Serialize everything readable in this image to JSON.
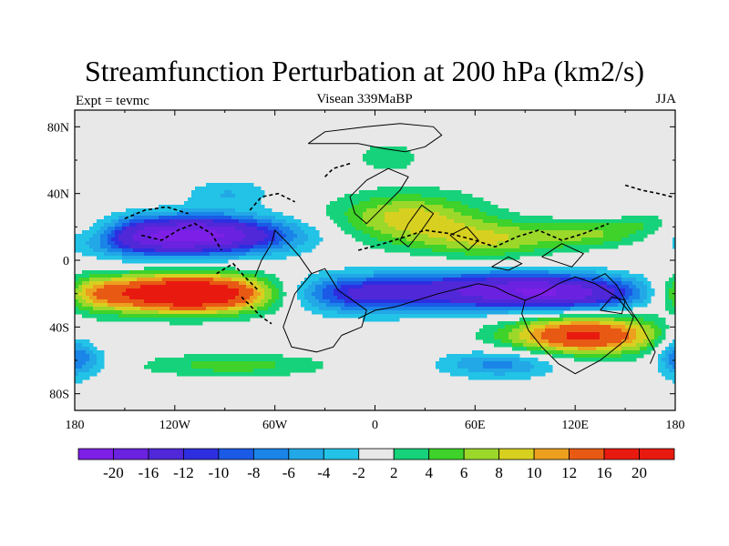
{
  "header": {
    "title": "Streamfunction Perturbation at 200 hPa (km2/s)",
    "left": "Expt = tevmc",
    "center": "Visean 339MaBP",
    "right": "JJA"
  },
  "chart_data": {
    "type": "heatmap",
    "xlim": [
      -180,
      180
    ],
    "ylim": [
      -90,
      90
    ],
    "x_ticks": [
      {
        "value": -180,
        "label": "180"
      },
      {
        "value": -120,
        "label": "120W"
      },
      {
        "value": -60,
        "label": "60W"
      },
      {
        "value": 0,
        "label": "0"
      },
      {
        "value": 60,
        "label": "60E"
      },
      {
        "value": 120,
        "label": "120E"
      },
      {
        "value": 180,
        "label": "180"
      }
    ],
    "y_ticks": [
      {
        "value": 80,
        "label": "80N"
      },
      {
        "value": 40,
        "label": "40N"
      },
      {
        "value": 0,
        "label": "0"
      },
      {
        "value": -40,
        "label": "40S"
      },
      {
        "value": -80,
        "label": "80S"
      }
    ],
    "levels": [
      -20,
      -16,
      -12,
      -10,
      -8,
      -6,
      -4,
      -2,
      2,
      4,
      6,
      8,
      10,
      12,
      16,
      20
    ],
    "level_labels": [
      "-20",
      "-16",
      "-12",
      "-10",
      "-8",
      "-6",
      "-4",
      "-2",
      "2",
      "4",
      "6",
      "8",
      "10",
      "12",
      "16",
      "20"
    ],
    "colors": [
      "#7d1fe6",
      "#6a22e0",
      "#5028d8",
      "#2d2ee0",
      "#1a5ae6",
      "#1a84e8",
      "#22a8e6",
      "#22c3e6",
      "#e8e8e8",
      "#16d27a",
      "#3ed22a",
      "#9bd82a",
      "#d8d020",
      "#eca01e",
      "#e85a14",
      "#e81a10"
    ],
    "features": [
      {
        "lon": -105,
        "lat": 15,
        "amp": -21,
        "sx": 38,
        "sy": 8
      },
      {
        "lon": -140,
        "lat": 12,
        "amp": -5,
        "sx": 22,
        "sy": 8
      },
      {
        "lon": -88,
        "lat": 40,
        "amp": -4,
        "sx": 18,
        "sy": 6
      },
      {
        "lon": -110,
        "lat": -20,
        "amp": 24,
        "sx": 40,
        "sy": 8
      },
      {
        "lon": -170,
        "lat": -20,
        "amp": 6,
        "sx": 15,
        "sy": 7
      },
      {
        "lon": -165,
        "lat": 18,
        "amp": 3,
        "sx": 10,
        "sy": 6
      },
      {
        "lon": -10,
        "lat": -20,
        "amp": -13,
        "sx": 40,
        "sy": 8
      },
      {
        "lon": 78,
        "lat": -18,
        "amp": -14,
        "sx": 40,
        "sy": 8
      },
      {
        "lon": 125,
        "lat": -20,
        "amp": -11,
        "sx": 35,
        "sy": 7
      },
      {
        "lon": 20,
        "lat": 25,
        "amp": 9,
        "sx": 32,
        "sy": 11
      },
      {
        "lon": 70,
        "lat": 12,
        "amp": 7,
        "sx": 28,
        "sy": 8
      },
      {
        "lon": 130,
        "lat": 16,
        "amp": 6,
        "sx": 25,
        "sy": 6
      },
      {
        "lon": 8,
        "lat": 62,
        "amp": 4,
        "sx": 13,
        "sy": 6
      },
      {
        "lon": 165,
        "lat": 22,
        "amp": 3,
        "sx": 12,
        "sy": 5
      },
      {
        "lon": 125,
        "lat": -45,
        "amp": 17,
        "sx": 32,
        "sy": 8
      },
      {
        "lon": 75,
        "lat": -62,
        "amp": -7,
        "sx": 25,
        "sy": 6
      },
      {
        "lon": -85,
        "lat": -63,
        "amp": 5,
        "sx": 40,
        "sy": 5
      },
      {
        "lon": -178,
        "lat": -55,
        "amp": -4,
        "sx": 8,
        "sy": 12
      },
      {
        "lon": -170,
        "lat": -60,
        "amp": -3,
        "sx": 12,
        "sy": 6
      },
      {
        "lon": 178,
        "lat": -55,
        "amp": -3,
        "sx": 8,
        "sy": 10
      }
    ],
    "coastlines": [
      [
        [
          -20,
          -45
        ],
        [
          -25,
          -52
        ],
        [
          -35,
          -55
        ],
        [
          -50,
          -52
        ],
        [
          -55,
          -40
        ],
        [
          -48,
          -20
        ],
        [
          -38,
          -8
        ],
        [
          -30,
          -5
        ],
        [
          -22,
          -18
        ],
        [
          -12,
          -25
        ],
        [
          -5,
          -30
        ],
        [
          -8,
          -40
        ],
        [
          -20,
          -45
        ]
      ],
      [
        [
          -38,
          -8
        ],
        [
          -45,
          2
        ],
        [
          -52,
          10
        ],
        [
          -60,
          18
        ],
        [
          -62,
          10
        ],
        [
          -68,
          0
        ],
        [
          -72,
          -10
        ]
      ],
      [
        [
          -10,
          -35
        ],
        [
          0,
          -30
        ],
        [
          12,
          -28
        ],
        [
          25,
          -24
        ],
        [
          38,
          -20
        ],
        [
          50,
          -17
        ],
        [
          62,
          -14
        ],
        [
          72,
          -16
        ],
        [
          80,
          -20
        ],
        [
          90,
          -24
        ]
      ],
      [
        [
          90,
          -24
        ],
        [
          100,
          -20
        ],
        [
          110,
          -14
        ],
        [
          120,
          -10
        ],
        [
          132,
          -14
        ],
        [
          145,
          -22
        ],
        [
          155,
          -34
        ],
        [
          150,
          -48
        ],
        [
          135,
          -60
        ],
        [
          120,
          -68
        ],
        [
          110,
          -62
        ],
        [
          100,
          -52
        ],
        [
          92,
          -42
        ],
        [
          88,
          -32
        ],
        [
          90,
          -24
        ]
      ],
      [
        [
          130,
          -12
        ],
        [
          138,
          -8
        ],
        [
          145,
          -15
        ],
        [
          152,
          -28
        ],
        [
          160,
          -40
        ],
        [
          168,
          -55
        ],
        [
          165,
          -62
        ]
      ],
      [
        [
          -40,
          70
        ],
        [
          -30,
          77
        ],
        [
          -5,
          80
        ],
        [
          15,
          82
        ],
        [
          35,
          80
        ],
        [
          40,
          75
        ],
        [
          30,
          68
        ],
        [
          18,
          65
        ],
        [
          5,
          67
        ],
        [
          -10,
          70
        ],
        [
          -25,
          70
        ],
        [
          -40,
          70
        ]
      ],
      [
        [
          -15,
          38
        ],
        [
          -12,
          28
        ],
        [
          -5,
          22
        ],
        [
          5,
          32
        ],
        [
          15,
          42
        ],
        [
          20,
          50
        ],
        [
          8,
          55
        ],
        [
          -5,
          48
        ],
        [
          -15,
          38
        ]
      ],
      [
        [
          20,
          8
        ],
        [
          28,
          18
        ],
        [
          35,
          28
        ],
        [
          28,
          33
        ],
        [
          20,
          22
        ],
        [
          15,
          12
        ],
        [
          20,
          8
        ]
      ],
      [
        [
          45,
          15
        ],
        [
          55,
          20
        ],
        [
          62,
          12
        ],
        [
          56,
          6
        ],
        [
          45,
          15
        ]
      ],
      [
        [
          70,
          -4
        ],
        [
          80,
          2
        ],
        [
          88,
          -2
        ],
        [
          80,
          -6
        ],
        [
          70,
          -4
        ]
      ],
      [
        [
          135,
          -30
        ],
        [
          142,
          -22
        ],
        [
          150,
          -24
        ],
        [
          148,
          -32
        ],
        [
          135,
          -30
        ]
      ],
      [
        [
          100,
          2
        ],
        [
          112,
          10
        ],
        [
          125,
          4
        ],
        [
          118,
          -4
        ],
        [
          100,
          2
        ]
      ]
    ],
    "dashed_coastlines": [
      [
        [
          -140,
          15
        ],
        [
          -128,
          12
        ],
        [
          -118,
          18
        ],
        [
          -108,
          22
        ],
        [
          -98,
          16
        ],
        [
          -92,
          6
        ]
      ],
      [
        [
          -150,
          25
        ],
        [
          -138,
          30
        ],
        [
          -125,
          32
        ],
        [
          -112,
          28
        ]
      ],
      [
        [
          -75,
          30
        ],
        [
          -68,
          38
        ],
        [
          -58,
          40
        ],
        [
          -48,
          35
        ]
      ],
      [
        [
          -10,
          6
        ],
        [
          5,
          10
        ],
        [
          18,
          14
        ],
        [
          30,
          18
        ],
        [
          45,
          16
        ],
        [
          60,
          12
        ],
        [
          72,
          8
        ],
        [
          85,
          14
        ],
        [
          98,
          18
        ],
        [
          112,
          12
        ],
        [
          125,
          16
        ],
        [
          140,
          22
        ]
      ],
      [
        [
          -95,
          -8
        ],
        [
          -85,
          -2
        ],
        [
          -78,
          -10
        ],
        [
          -70,
          -18
        ]
      ],
      [
        [
          -80,
          -22
        ],
        [
          -74,
          -28
        ],
        [
          -68,
          -34
        ],
        [
          -62,
          -38
        ]
      ],
      [
        [
          150,
          45
        ],
        [
          160,
          42
        ],
        [
          170,
          40
        ],
        [
          178,
          38
        ]
      ],
      [
        [
          -30,
          50
        ],
        [
          -25,
          55
        ],
        [
          -15,
          58
        ]
      ]
    ]
  }
}
